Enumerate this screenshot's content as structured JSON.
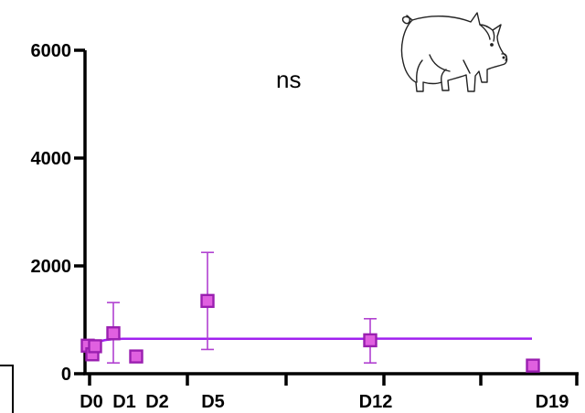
{
  "chart_data": {
    "type": "scatter",
    "annotation": "ns",
    "y_ticks": [
      0,
      2000,
      4000,
      6000
    ],
    "ylim": [
      0,
      6000
    ],
    "x_tick_labels": [
      "D0",
      "D1",
      "D2",
      "D5",
      "D12",
      "D19"
    ],
    "x_tick_positions": [
      0,
      1,
      2,
      5,
      12,
      19
    ],
    "xlim": [
      -0.3,
      20
    ],
    "series": [
      {
        "marker": "square",
        "color": "#cc33cc",
        "points": [
          {
            "x": -0.1,
            "y": 520
          },
          {
            "x": 0.05,
            "y": 360
          },
          {
            "x": 0.25,
            "y": 510
          },
          {
            "x": 1.1,
            "y": 750,
            "err_low": 200,
            "err_high": 1320
          },
          {
            "x": 2.2,
            "y": 320
          },
          {
            "x": 5.5,
            "y": 1350,
            "err_low": 450,
            "err_high": 2250
          },
          {
            "x": 13.2,
            "y": 620,
            "err_low": 200,
            "err_high": 1020
          },
          {
            "x": 19.6,
            "y": 150
          }
        ]
      }
    ],
    "fit_curve": {
      "color": "#a020f0",
      "plateau": 650,
      "y0": 420,
      "k": 0.9,
      "x_end": 19.6
    },
    "xlabel": "",
    "ylabel": "",
    "grid": false
  },
  "icons": {
    "pig": "pig-icon"
  }
}
